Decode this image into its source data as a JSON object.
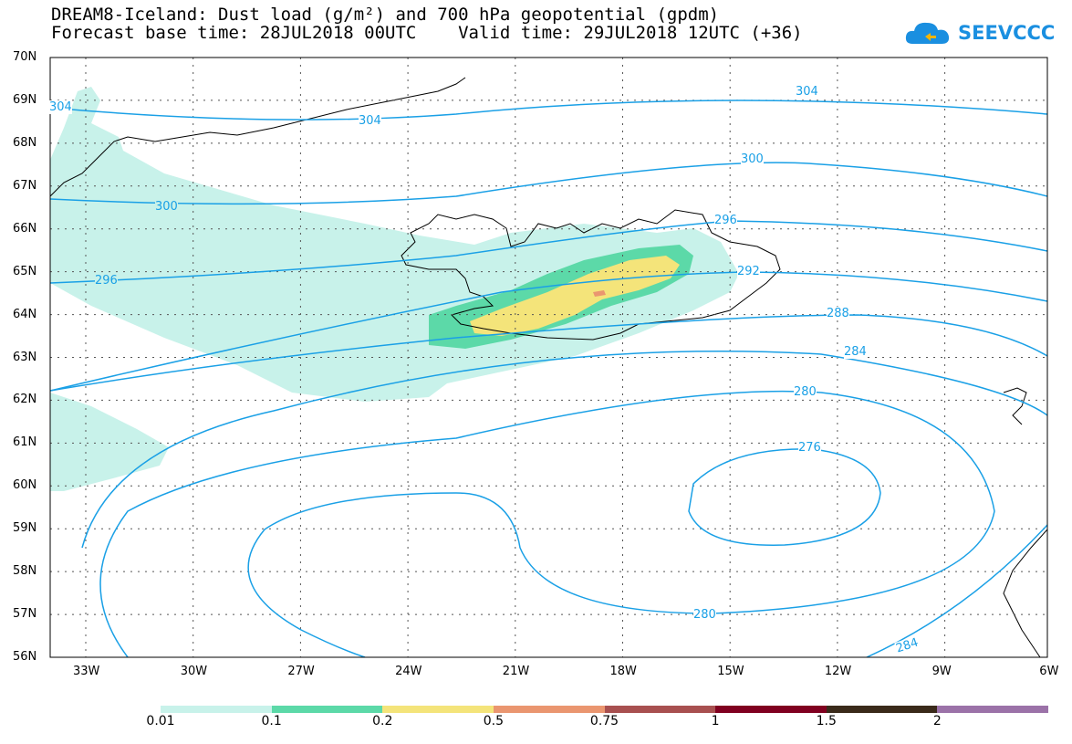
{
  "title_line1": "DREAM8-Iceland: Dust load (g/m²) and 700 hPa geopotential (gpdm)",
  "title_line2": "Forecast base time: 28JUL2018 00UTC    Valid time: 29JUL2018 12UTC (+36)",
  "logo_text": "SEEVCCC",
  "lat_labels": [
    "70N",
    "69N",
    "68N",
    "67N",
    "66N",
    "65N",
    "64N",
    "63N",
    "62N",
    "61N",
    "60N",
    "59N",
    "58N",
    "57N",
    "56N"
  ],
  "lon_labels": [
    "33W",
    "30W",
    "27W",
    "24W",
    "21W",
    "18W",
    "15W",
    "12W",
    "9W",
    "6W"
  ],
  "colorbar": {
    "ticks": [
      "0.01",
      "0.1",
      "0.2",
      "0.5",
      "0.75",
      "1",
      "1.5",
      "2"
    ],
    "colors": [
      "#c8f2ea",
      "#5cd9a8",
      "#f4e47a",
      "#ea9670",
      "#a85050",
      "#800020",
      "#3a2a1a",
      "#9b72a8"
    ]
  },
  "contour_labels": {
    "c304a": "304",
    "c304b": "304",
    "c304c": "304",
    "c300a": "300",
    "c300b": "300",
    "c296a": "296",
    "c296b": "296",
    "c292": "292",
    "c288": "288",
    "c284a": "284",
    "c284b": "284",
    "c280a": "280",
    "c280b": "280",
    "c276": "276"
  },
  "colors": {
    "contour": "#1aa0e6",
    "dust_light": "#c8f2ea",
    "dust_mid": "#5cd9a8",
    "dust_high": "#f4e47a",
    "dust_peak": "#ea9670"
  }
}
